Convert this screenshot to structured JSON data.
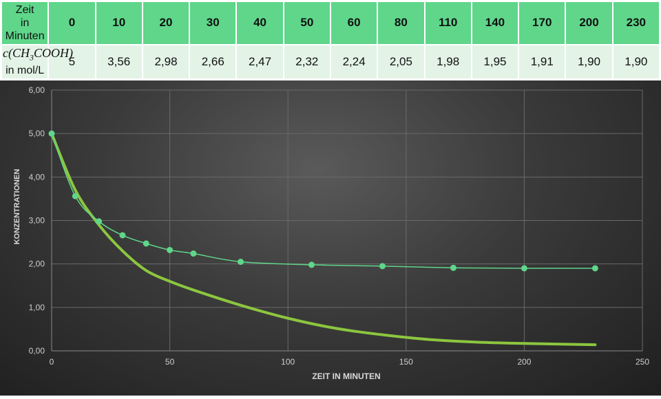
{
  "table": {
    "row1_label_line1": "Zeit",
    "row1_label_line2": "in Minuten",
    "row2_label_formula": "c(CH3COOH)",
    "row2_label_unit": "in mol/L",
    "times": [
      "0",
      "10",
      "20",
      "30",
      "40",
      "50",
      "60",
      "80",
      "110",
      "140",
      "170",
      "200",
      "230"
    ],
    "concentrations": [
      "5",
      "3,56",
      "2,98",
      "2,66",
      "2,47",
      "2,32",
      "2,24",
      "2,05",
      "1,98",
      "1,95",
      "1,91",
      "1,90",
      "1,90"
    ]
  },
  "chart_data": {
    "type": "line",
    "xlabel": "ZEIT IN MINUTEN",
    "ylabel": "KONZENTRATIONEN",
    "xlim": [
      0,
      250
    ],
    "ylim": [
      0,
      6
    ],
    "xticks": [
      "0",
      "50",
      "100",
      "150",
      "200",
      "250"
    ],
    "yticks": [
      "0,00",
      "1,00",
      "2,00",
      "3,00",
      "4,00",
      "5,00",
      "6,00"
    ],
    "grid": true,
    "series": [
      {
        "color": "#5fd68a",
        "markers": true,
        "x": [
          0,
          10,
          20,
          30,
          40,
          50,
          60,
          80,
          110,
          140,
          170,
          200,
          230
        ],
        "y": [
          5,
          3.56,
          2.98,
          2.66,
          2.47,
          2.32,
          2.24,
          2.05,
          1.98,
          1.95,
          1.91,
          1.9,
          1.9
        ]
      },
      {
        "color": "#8cc63f",
        "markers": false,
        "x": [
          0,
          10,
          20,
          30,
          40,
          50,
          60,
          80,
          100,
          120,
          140,
          160,
          180,
          200,
          230
        ],
        "y": [
          5,
          3.7,
          2.9,
          2.3,
          1.85,
          1.6,
          1.4,
          1.05,
          0.75,
          0.52,
          0.37,
          0.26,
          0.2,
          0.17,
          0.14
        ]
      }
    ]
  }
}
